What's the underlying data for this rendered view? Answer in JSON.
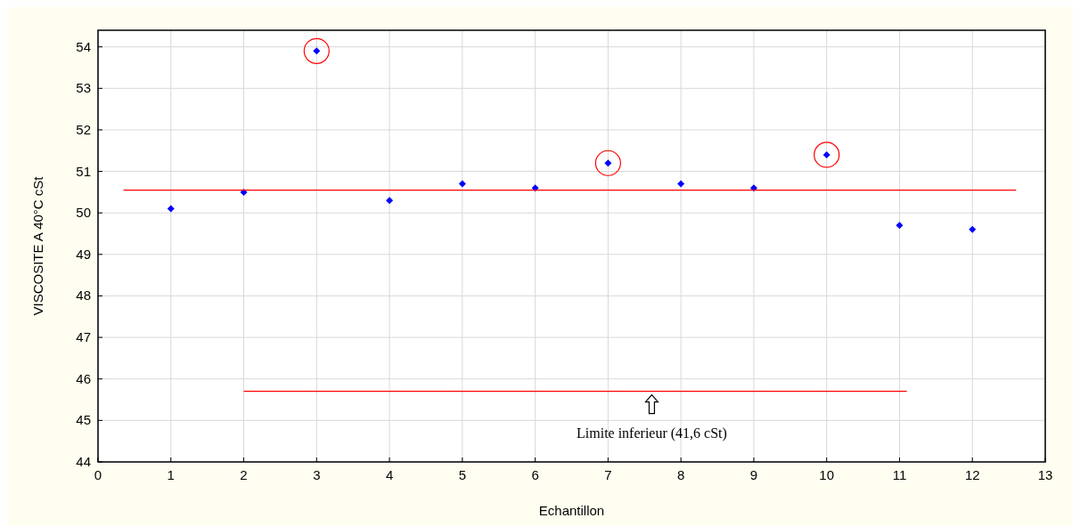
{
  "chart_data": {
    "type": "scatter",
    "xlabel": "Echantillon",
    "ylabel": "VISCOSITE A 40°C cSt",
    "x": [
      1,
      2,
      3,
      4,
      5,
      6,
      7,
      8,
      9,
      10,
      11,
      12
    ],
    "series": [
      {
        "color": "#0000ff",
        "values": [
          50.1,
          50.5,
          53.9,
          50.3,
          50.7,
          50.6,
          51.2,
          50.7,
          50.6,
          51.4,
          49.7,
          49.6
        ],
        "marker": "diamond"
      },
      {
        "color": "#ff0000",
        "x": [
          3,
          7,
          10
        ],
        "values": [
          53.9,
          51.2,
          51.4
        ],
        "marker": "circle"
      },
      {
        "type": "line",
        "color": "#ff0000",
        "x": [
          0.35,
          12.6
        ],
        "values": [
          50.55,
          50.55
        ]
      },
      {
        "type": "line",
        "color": "#ff0000",
        "x": [
          2,
          11.1
        ],
        "values": [
          45.7,
          45.7
        ]
      }
    ],
    "annotations": [
      {
        "text": "Limite inferieur (41,6 cSt)",
        "x": 7.6,
        "y": 45.7
      }
    ],
    "xlim": [
      0,
      13
    ],
    "xticks": [
      0,
      1,
      2,
      3,
      4,
      5,
      6,
      7,
      8,
      9,
      10,
      11,
      12,
      13
    ],
    "ylim": [
      44,
      54.4
    ],
    "yticks": [
      44,
      45,
      46,
      47,
      48,
      49,
      50,
      51,
      52,
      53,
      54
    ],
    "grid": true
  }
}
